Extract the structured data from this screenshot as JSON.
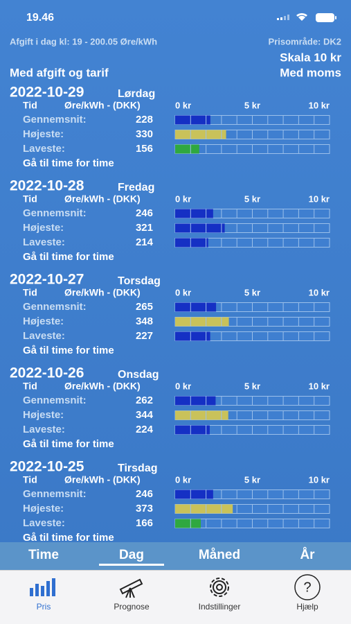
{
  "status_bar": {
    "time": "19.46"
  },
  "header": {
    "fee_note": "Afgift i dag kl: 19 - 200.05 Øre/kWh",
    "price_area": "Prisområde: DK2",
    "scale": "Skala 10 kr",
    "tariff": "Med afgift og tarif",
    "vat": "Med moms"
  },
  "columns": {
    "time": "Tid",
    "price": "Øre/kWh - (DKK)"
  },
  "scale_ticks": [
    {
      "value": 0,
      "label": "0 kr"
    },
    {
      "value": 500,
      "label": "5 kr"
    },
    {
      "value": 1000,
      "label": "10 kr"
    }
  ],
  "link": "Gå til time for time",
  "days": [
    {
      "date": "2022-10-29",
      "weekday": "Lørdag",
      "rows": [
        {
          "label": "Gennemsnit:",
          "value": 228,
          "color": "#1530c4"
        },
        {
          "label": "Højeste:",
          "value": 330,
          "color": "#c9c25a"
        },
        {
          "label": "Laveste:",
          "value": 156,
          "color": "#2fa840"
        }
      ]
    },
    {
      "date": "2022-10-28",
      "weekday": "Fredag",
      "rows": [
        {
          "label": "Gennemsnit:",
          "value": 246,
          "color": "#1530c4"
        },
        {
          "label": "Højeste:",
          "value": 321,
          "color": "#1530c4"
        },
        {
          "label": "Laveste:",
          "value": 214,
          "color": "#1530c4"
        }
      ]
    },
    {
      "date": "2022-10-27",
      "weekday": "Torsdag",
      "rows": [
        {
          "label": "Gennemsnit:",
          "value": 265,
          "color": "#1530c4"
        },
        {
          "label": "Højeste:",
          "value": 348,
          "color": "#c9c25a"
        },
        {
          "label": "Laveste:",
          "value": 227,
          "color": "#1530c4"
        }
      ]
    },
    {
      "date": "2022-10-26",
      "weekday": "Onsdag",
      "rows": [
        {
          "label": "Gennemsnit:",
          "value": 262,
          "color": "#1530c4"
        },
        {
          "label": "Højeste:",
          "value": 344,
          "color": "#c9c25a"
        },
        {
          "label": "Laveste:",
          "value": 224,
          "color": "#1530c4"
        }
      ]
    },
    {
      "date": "2022-10-25",
      "weekday": "Tirsdag",
      "rows": [
        {
          "label": "Gennemsnit:",
          "value": 246,
          "color": "#1530c4"
        },
        {
          "label": "Højeste:",
          "value": 373,
          "color": "#c9c25a"
        },
        {
          "label": "Laveste:",
          "value": 166,
          "color": "#2fa840"
        }
      ]
    }
  ],
  "period_tabs": [
    "Time",
    "Dag",
    "Måned",
    "År"
  ],
  "selected_period": 1,
  "tab_bar": [
    "Pris",
    "Prognose",
    "Indstillinger",
    "Hjælp"
  ],
  "active_tab": 0
}
